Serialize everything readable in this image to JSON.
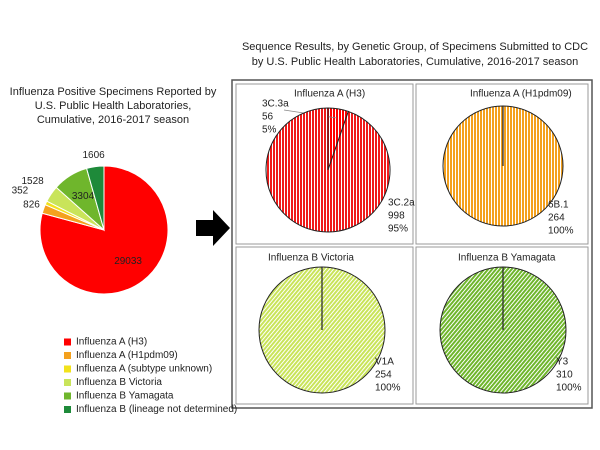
{
  "sequence_title": [
    "Sequence Results, by Genetic Group, of Specimens Submitted to CDC",
    "by U.S. Public Health Laboratories, Cumulative, 2016-2017 season"
  ],
  "chart_data": [
    {
      "type": "pie",
      "title": [
        "Influenza Positive Specimens Reported by",
        "U.S. Public Health Laboratories,",
        "Cumulative, 2016-2017 season"
      ],
      "categories": [
        "Influenza A (H3)",
        "Influenza A (H1pdm09)",
        "Influenza A (subtype unknown)",
        "Influenza B Victoria",
        "Influenza B Yamagata",
        "Influenza B (lineage not determined)"
      ],
      "values": [
        29033,
        826,
        352,
        1528,
        3304,
        1606
      ],
      "colors": [
        "#ff0000",
        "#f4a11e",
        "#f2e21b",
        "#c9e45a",
        "#6fb62c",
        "#1e8a3a"
      ]
    },
    {
      "type": "pie",
      "title": "Influenza A (H3)",
      "categories": [
        "3C.3a",
        "3C.2a"
      ],
      "values": [
        56,
        998
      ],
      "percent_labels": [
        "5%",
        "95%"
      ],
      "colors": [
        "#ff0000",
        "#f01a1a"
      ]
    },
    {
      "type": "pie",
      "title": "Influenza A (H1pdm09)",
      "categories": [
        "6B.1"
      ],
      "values": [
        264
      ],
      "percent_labels": [
        "100%"
      ],
      "colors": [
        "#f4a11e"
      ]
    },
    {
      "type": "pie",
      "title": "Influenza B Victoria",
      "categories": [
        "V1A"
      ],
      "values": [
        254
      ],
      "percent_labels": [
        "100%"
      ],
      "colors": [
        "#c9e45a"
      ]
    },
    {
      "type": "pie",
      "title": "Influenza B Yamagata",
      "categories": [
        "Y3"
      ],
      "values": [
        310
      ],
      "percent_labels": [
        "100%"
      ],
      "colors": [
        "#6fb62c"
      ]
    }
  ]
}
